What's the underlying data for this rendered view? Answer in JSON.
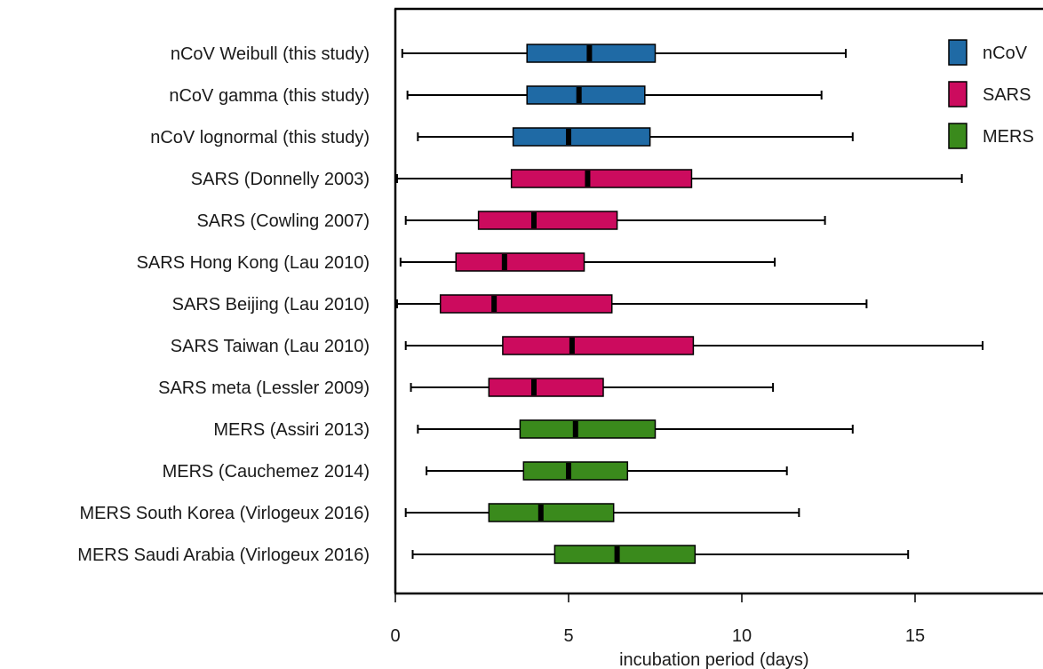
{
  "chart_data": {
    "type": "boxplot",
    "orientation": "horizontal",
    "xlabel": "incubation period (days)",
    "xlim": [
      0,
      18.6
    ],
    "xticks": [
      0,
      5,
      10,
      15
    ],
    "legend": {
      "placement": "top-right",
      "entries": [
        {
          "label": "nCoV",
          "color": "#1f6aa5"
        },
        {
          "label": "SARS",
          "color": "#cc0b5e"
        },
        {
          "label": "MERS",
          "color": "#3a8a1c"
        }
      ]
    },
    "series": [
      {
        "label": "nCoV Weibull (this study)",
        "group": "nCoV",
        "min": 0.2,
        "q1": 3.8,
        "median": 5.6,
        "q3": 7.5,
        "max": 13.0
      },
      {
        "label": "nCoV gamma (this study)",
        "group": "nCoV",
        "min": 0.35,
        "q1": 3.8,
        "median": 5.3,
        "q3": 7.2,
        "max": 12.3
      },
      {
        "label": "nCoV lognormal (this study)",
        "group": "nCoV",
        "min": 0.65,
        "q1": 3.4,
        "median": 5.0,
        "q3": 7.35,
        "max": 13.2
      },
      {
        "label": "SARS (Donnelly 2003)",
        "group": "SARS",
        "min": 0.05,
        "q1": 3.35,
        "median": 5.55,
        "q3": 8.55,
        "max": 16.35
      },
      {
        "label": "SARS (Cowling 2007)",
        "group": "SARS",
        "min": 0.3,
        "q1": 2.4,
        "median": 4.0,
        "q3": 6.4,
        "max": 12.4
      },
      {
        "label": "SARS Hong Kong (Lau 2010)",
        "group": "SARS",
        "min": 0.15,
        "q1": 1.75,
        "median": 3.15,
        "q3": 5.45,
        "max": 10.95
      },
      {
        "label": "SARS Beijing (Lau 2010)",
        "group": "SARS",
        "min": 0.05,
        "q1": 1.3,
        "median": 2.85,
        "q3": 6.25,
        "max": 13.6
      },
      {
        "label": "SARS Taiwan (Lau 2010)",
        "group": "SARS",
        "min": 0.3,
        "q1": 3.1,
        "median": 5.1,
        "q3": 8.6,
        "max": 16.95
      },
      {
        "label": "SARS meta (Lessler 2009)",
        "group": "SARS",
        "min": 0.45,
        "q1": 2.7,
        "median": 4.0,
        "q3": 6.0,
        "max": 10.9
      },
      {
        "label": "MERS (Assiri 2013)",
        "group": "MERS",
        "min": 0.65,
        "q1": 3.6,
        "median": 5.2,
        "q3": 7.5,
        "max": 13.2
      },
      {
        "label": "MERS (Cauchemez 2014)",
        "group": "MERS",
        "min": 0.9,
        "q1": 3.7,
        "median": 5.0,
        "q3": 6.7,
        "max": 11.3
      },
      {
        "label": "MERS South Korea (Virlogeux 2016)",
        "group": "MERS",
        "min": 0.3,
        "q1": 2.7,
        "median": 4.2,
        "q3": 6.3,
        "max": 11.65
      },
      {
        "label": "MERS Saudi Arabia (Virlogeux 2016)",
        "group": "MERS",
        "min": 0.5,
        "q1": 4.6,
        "median": 6.4,
        "q3": 8.65,
        "max": 14.8
      }
    ]
  }
}
